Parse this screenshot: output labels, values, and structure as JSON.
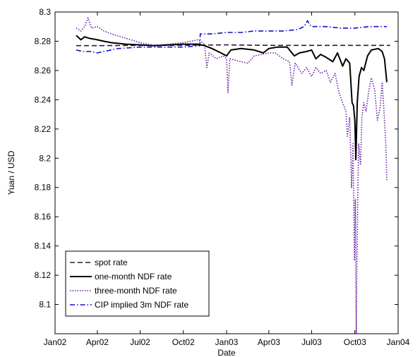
{
  "chart_data": {
    "type": "line",
    "title": "",
    "xlabel": "Date",
    "ylabel": "Yuan / USD",
    "xlim": [
      "2002-01-01",
      "2004-01-01"
    ],
    "ylim": [
      8.08,
      8.3
    ],
    "grid": false,
    "legend_position": "bottom-left",
    "x_ticks": [
      "Jan02",
      "Apr02",
      "Jul02",
      "Oct02",
      "Jan03",
      "Apr03",
      "Jul03",
      "Oct03",
      "Jan04"
    ],
    "y_ticks": [
      "8.1",
      "8.12",
      "8.14",
      "8.16",
      "8.18",
      "8.2",
      "8.22",
      "8.24",
      "8.26",
      "8.28",
      "8.3"
    ],
    "series": [
      {
        "name": "spot rate",
        "color": "#3b1038",
        "style": "dashed",
        "points": [
          [
            "2002-02-15",
            8.277
          ],
          [
            "2002-04-01",
            8.277
          ],
          [
            "2002-07-01",
            8.2772
          ],
          [
            "2002-10-01",
            8.2773
          ],
          [
            "2003-01-01",
            8.2775
          ],
          [
            "2003-04-01",
            8.2772
          ],
          [
            "2003-07-01",
            8.2772
          ],
          [
            "2003-10-01",
            8.2772
          ],
          [
            "2003-12-15",
            8.2772
          ]
        ]
      },
      {
        "name": "one-month NDF rate",
        "color": "#000000",
        "style": "solid",
        "points": [
          [
            "2002-02-15",
            8.284
          ],
          [
            "2002-02-25",
            8.281
          ],
          [
            "2002-03-05",
            8.283
          ],
          [
            "2002-03-15",
            8.282
          ],
          [
            "2002-04-01",
            8.281
          ],
          [
            "2002-04-15",
            8.28
          ],
          [
            "2002-05-01",
            8.279
          ],
          [
            "2002-06-01",
            8.278
          ],
          [
            "2002-07-01",
            8.2775
          ],
          [
            "2002-08-01",
            8.277
          ],
          [
            "2002-09-01",
            8.2775
          ],
          [
            "2002-10-01",
            8.278
          ],
          [
            "2002-11-01",
            8.278
          ],
          [
            "2002-11-15",
            8.277
          ],
          [
            "2002-12-01",
            8.275
          ],
          [
            "2002-12-20",
            8.272
          ],
          [
            "2003-01-01",
            8.27
          ],
          [
            "2003-01-10",
            8.274
          ],
          [
            "2003-02-01",
            8.275
          ],
          [
            "2003-03-01",
            8.274
          ],
          [
            "2003-03-20",
            8.272
          ],
          [
            "2003-04-01",
            8.275
          ],
          [
            "2003-04-20",
            8.276
          ],
          [
            "2003-05-10",
            8.276
          ],
          [
            "2003-05-25",
            8.27
          ],
          [
            "2003-06-05",
            8.272
          ],
          [
            "2003-06-20",
            8.273
          ],
          [
            "2003-07-01",
            8.274
          ],
          [
            "2003-07-10",
            8.268
          ],
          [
            "2003-07-20",
            8.271
          ],
          [
            "2003-08-01",
            8.269
          ],
          [
            "2003-08-15",
            8.266
          ],
          [
            "2003-08-25",
            8.272
          ],
          [
            "2003-09-05",
            8.263
          ],
          [
            "2003-09-12",
            8.268
          ],
          [
            "2003-09-20",
            8.265
          ],
          [
            "2003-09-25",
            8.238
          ],
          [
            "2003-09-28",
            8.236
          ],
          [
            "2003-10-01",
            8.225
          ],
          [
            "2003-10-03",
            8.199
          ],
          [
            "2003-10-06",
            8.238
          ],
          [
            "2003-10-10",
            8.256
          ],
          [
            "2003-10-15",
            8.262
          ],
          [
            "2003-10-20",
            8.26
          ],
          [
            "2003-10-28",
            8.27
          ],
          [
            "2003-11-05",
            8.274
          ],
          [
            "2003-11-20",
            8.275
          ],
          [
            "2003-11-28",
            8.273
          ],
          [
            "2003-12-03",
            8.268
          ],
          [
            "2003-12-08",
            8.252
          ]
        ]
      },
      {
        "name": "three-month NDF rate",
        "color": "#6a1fa8",
        "style": "dotted",
        "points": [
          [
            "2002-02-15",
            8.289
          ],
          [
            "2002-02-25",
            8.287
          ],
          [
            "2002-03-05",
            8.29
          ],
          [
            "2002-03-12",
            8.296
          ],
          [
            "2002-03-20",
            8.289
          ],
          [
            "2002-04-01",
            8.29
          ],
          [
            "2002-04-15",
            8.287
          ],
          [
            "2002-05-01",
            8.285
          ],
          [
            "2002-06-01",
            8.282
          ],
          [
            "2002-07-01",
            8.279
          ],
          [
            "2002-08-01",
            8.277
          ],
          [
            "2002-09-01",
            8.278
          ],
          [
            "2002-10-01",
            8.279
          ],
          [
            "2002-11-01",
            8.281
          ],
          [
            "2002-11-15",
            8.278
          ],
          [
            "2002-11-20",
            8.262
          ],
          [
            "2002-11-25",
            8.272
          ],
          [
            "2002-12-10",
            8.268
          ],
          [
            "2002-12-25",
            8.27
          ],
          [
            "2003-01-01",
            8.268
          ],
          [
            "2003-01-04",
            8.245
          ],
          [
            "2003-01-08",
            8.268
          ],
          [
            "2003-02-01",
            8.266
          ],
          [
            "2003-02-15",
            8.265
          ],
          [
            "2003-03-01",
            8.27
          ],
          [
            "2003-04-01",
            8.272
          ],
          [
            "2003-04-15",
            8.272
          ],
          [
            "2003-05-01",
            8.268
          ],
          [
            "2003-05-15",
            8.266
          ],
          [
            "2003-05-20",
            8.25
          ],
          [
            "2003-05-27",
            8.265
          ],
          [
            "2003-06-10",
            8.258
          ],
          [
            "2003-06-20",
            8.262
          ],
          [
            "2003-07-01",
            8.256
          ],
          [
            "2003-07-10",
            8.262
          ],
          [
            "2003-07-20",
            8.258
          ],
          [
            "2003-08-01",
            8.26
          ],
          [
            "2003-08-10",
            8.252
          ],
          [
            "2003-08-20",
            8.258
          ],
          [
            "2003-08-28",
            8.245
          ],
          [
            "2003-09-05",
            8.238
          ],
          [
            "2003-09-12",
            8.232
          ],
          [
            "2003-09-15",
            8.215
          ],
          [
            "2003-09-20",
            8.228
          ],
          [
            "2003-09-24",
            8.18
          ],
          [
            "2003-09-27",
            8.21
          ],
          [
            "2003-09-30",
            8.13
          ],
          [
            "2003-10-02",
            8.172
          ],
          [
            "2003-10-04",
            8.08
          ],
          [
            "2003-10-06",
            8.15
          ],
          [
            "2003-10-09",
            8.21
          ],
          [
            "2003-10-13",
            8.196
          ],
          [
            "2003-10-16",
            8.228
          ],
          [
            "2003-10-20",
            8.238
          ],
          [
            "2003-10-25",
            8.232
          ],
          [
            "2003-10-30",
            8.245
          ],
          [
            "2003-11-05",
            8.255
          ],
          [
            "2003-11-12",
            8.247
          ],
          [
            "2003-11-18",
            8.226
          ],
          [
            "2003-11-24",
            8.235
          ],
          [
            "2003-11-28",
            8.252
          ],
          [
            "2003-12-02",
            8.232
          ],
          [
            "2003-12-06",
            8.208
          ],
          [
            "2003-12-08",
            8.185
          ]
        ]
      },
      {
        "name": "CIP implied 3m NDF rate",
        "color": "#1010cc",
        "style": "dash-dot",
        "points": [
          [
            "2002-02-15",
            8.274
          ],
          [
            "2002-03-01",
            8.273
          ],
          [
            "2002-03-20",
            8.273
          ],
          [
            "2002-04-01",
            8.272
          ],
          [
            "2002-04-15",
            8.273
          ],
          [
            "2002-05-15",
            8.275
          ],
          [
            "2002-07-01",
            8.276
          ],
          [
            "2002-08-15",
            8.276
          ],
          [
            "2002-10-01",
            8.276
          ],
          [
            "2002-11-05",
            8.277
          ],
          [
            "2002-11-06",
            8.285
          ],
          [
            "2002-12-01",
            8.285
          ],
          [
            "2003-01-01",
            8.286
          ],
          [
            "2003-02-01",
            8.286
          ],
          [
            "2003-03-01",
            8.287
          ],
          [
            "2003-04-01",
            8.287
          ],
          [
            "2003-05-01",
            8.287
          ],
          [
            "2003-06-01",
            8.288
          ],
          [
            "2003-06-15",
            8.29
          ],
          [
            "2003-06-22",
            8.294
          ],
          [
            "2003-06-30",
            8.29
          ],
          [
            "2003-08-01",
            8.29
          ],
          [
            "2003-09-01",
            8.289
          ],
          [
            "2003-10-01",
            8.289
          ],
          [
            "2003-11-01",
            8.29
          ],
          [
            "2003-12-08",
            8.29
          ]
        ]
      }
    ]
  }
}
